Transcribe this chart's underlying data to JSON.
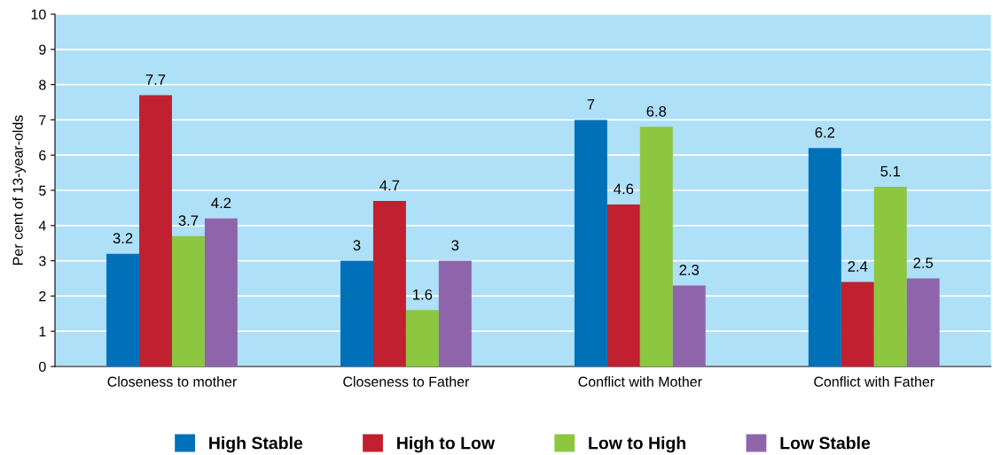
{
  "chart_data": {
    "type": "bar",
    "ylabel": "Per cent of 13-year-olds",
    "categories": [
      "Closeness to mother",
      "Closeness to Father",
      "Conflict with Mother",
      "Conflict with Father"
    ],
    "series": [
      {
        "name": "High Stable",
        "color": "#0070b8",
        "values": [
          3.2,
          3,
          7,
          6.2
        ]
      },
      {
        "name": "High to Low",
        "color": "#c0202f",
        "values": [
          7.7,
          4.7,
          4.6,
          2.4
        ]
      },
      {
        "name": "Low to High",
        "color": "#8dc63f",
        "values": [
          3.7,
          1.6,
          6.8,
          5.1
        ]
      },
      {
        "name": "Low Stable",
        "color": "#8e65ab",
        "values": [
          4.2,
          3,
          2.3,
          2.5
        ]
      }
    ],
    "ylim": [
      0,
      10
    ],
    "yticks": [
      0,
      1,
      2,
      3,
      4,
      5,
      6,
      7,
      8,
      9,
      10
    ],
    "grid": "y",
    "legend": "bottom",
    "data_labels": true
  }
}
